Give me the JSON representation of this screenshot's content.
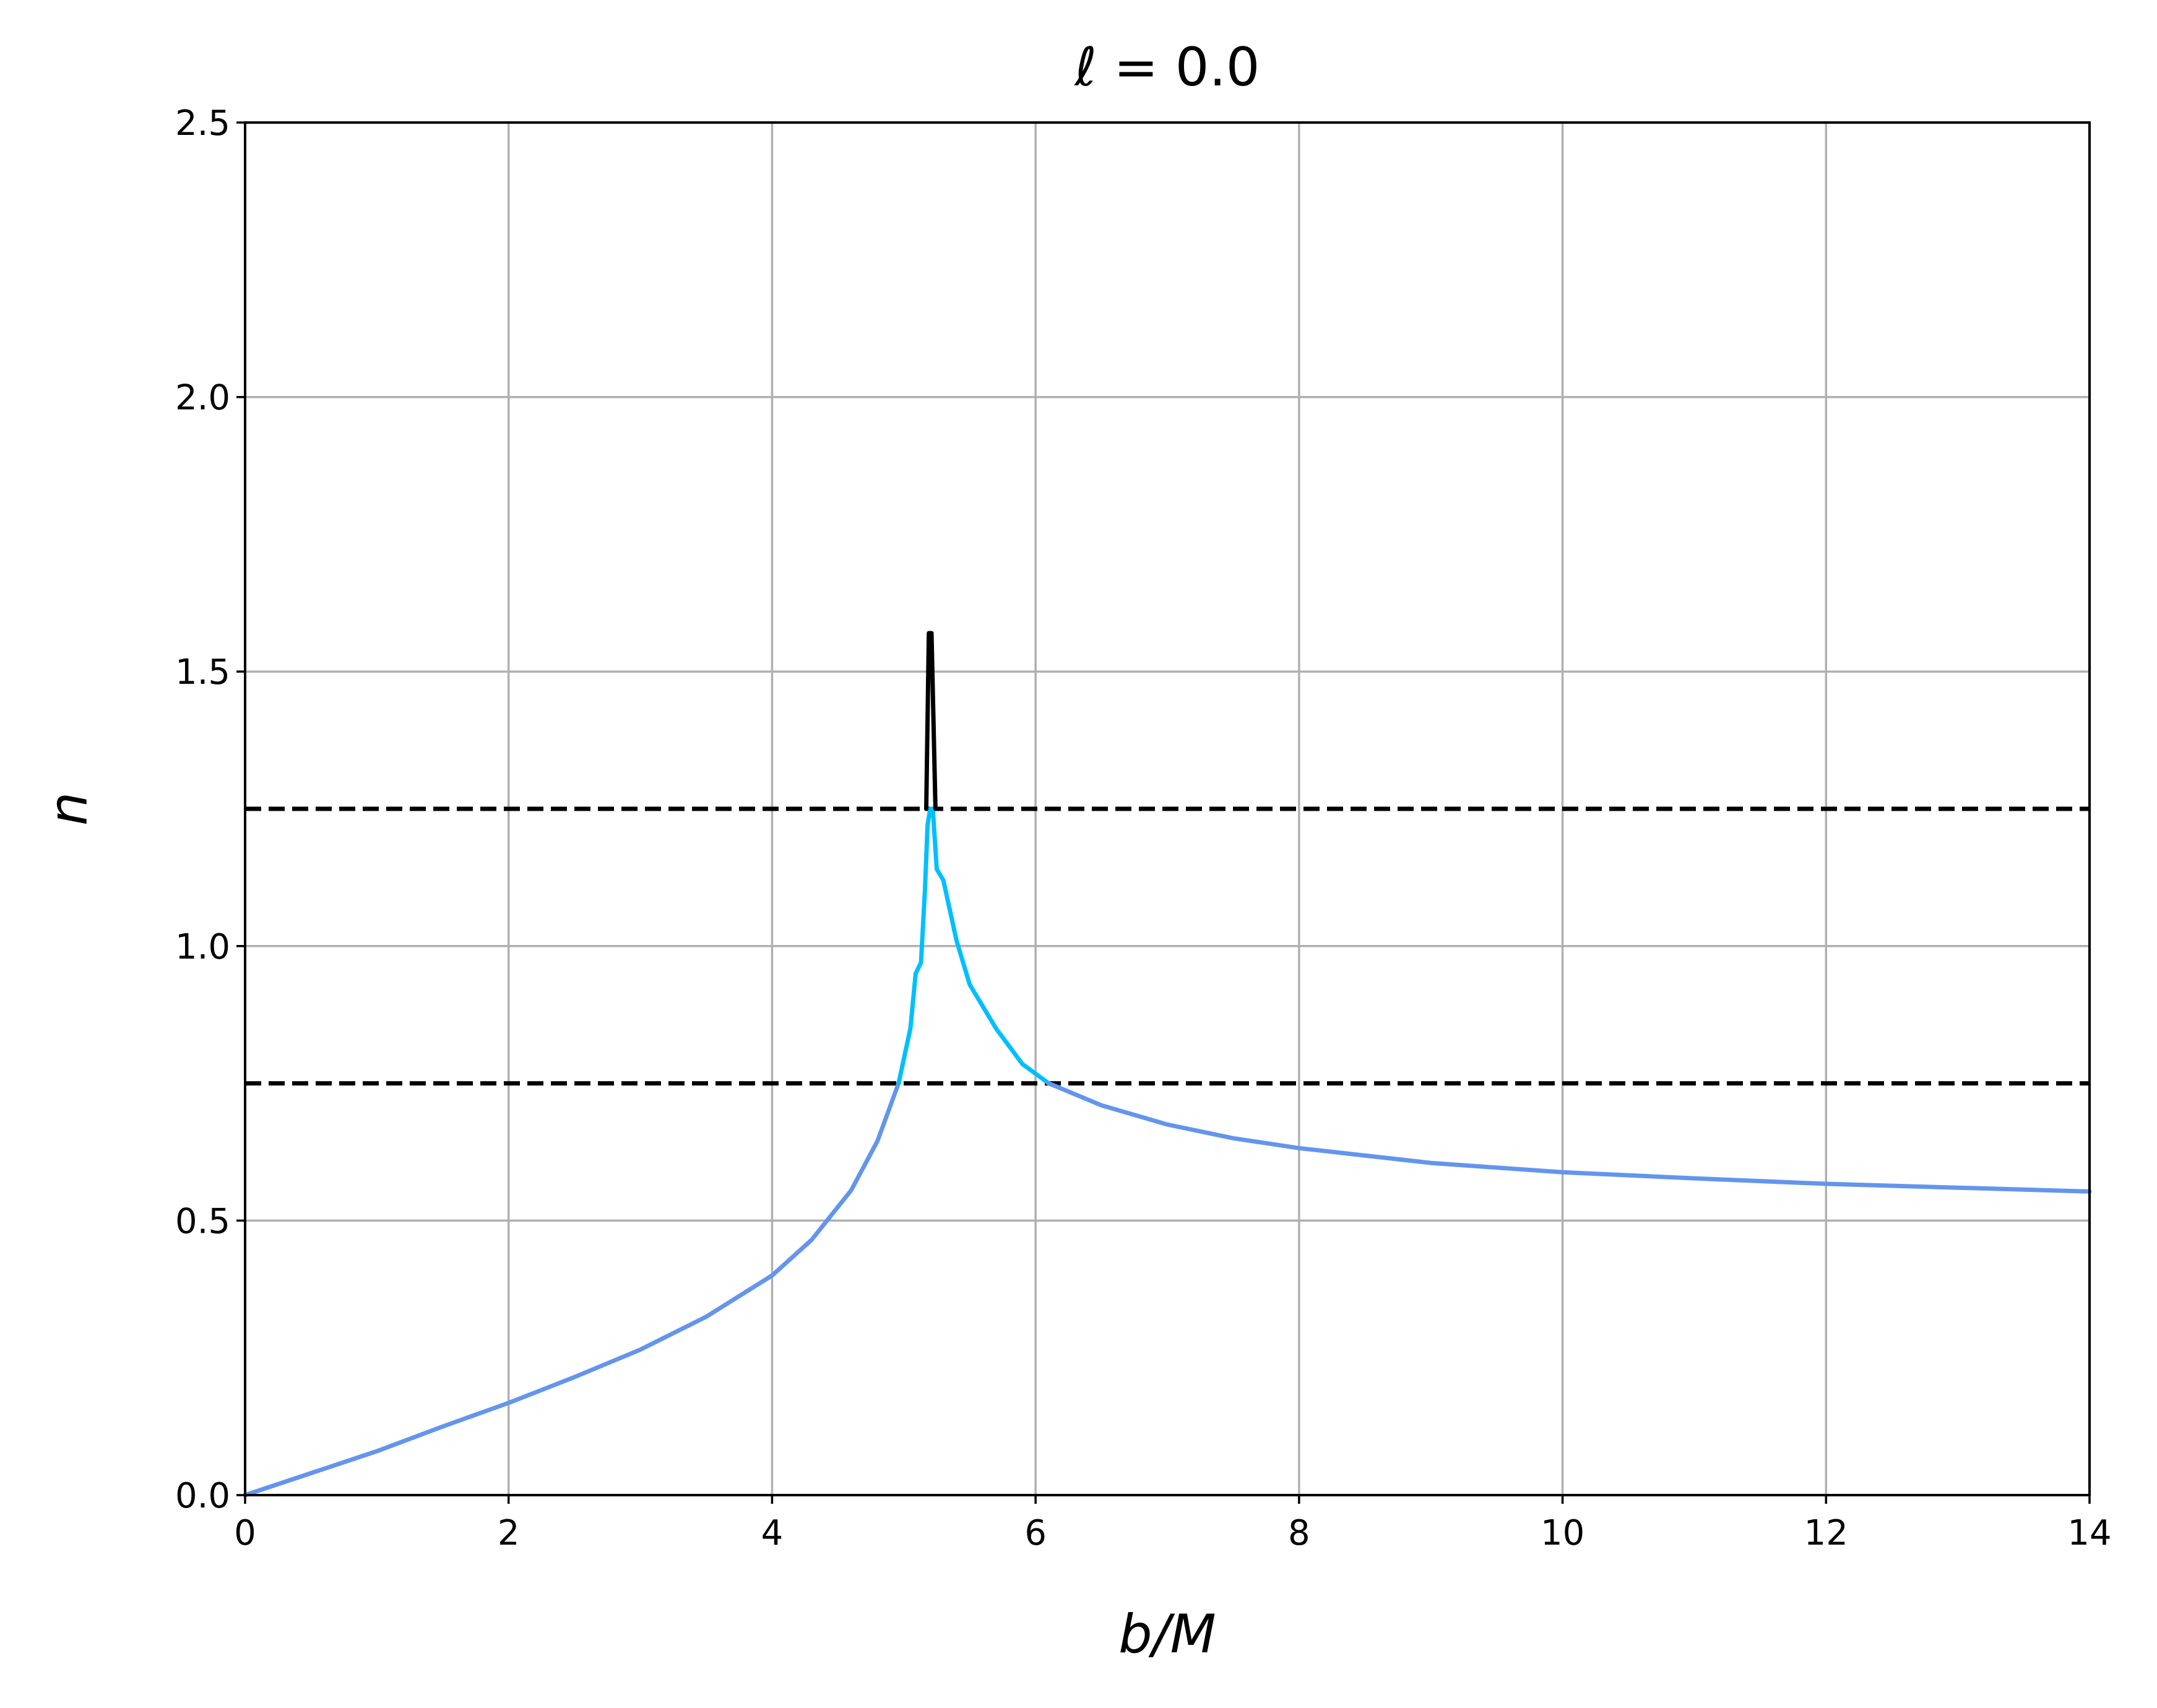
{
  "chart_data": {
    "type": "line",
    "title": "ℓ = 0.0",
    "xlabel": "b/M",
    "ylabel": "n",
    "xlim": [
      0,
      14
    ],
    "ylim": [
      0,
      2.5
    ],
    "grid": true,
    "x_ticks": [
      "0",
      "2",
      "4",
      "6",
      "8",
      "10",
      "12",
      "14"
    ],
    "y_ticks": [
      "0.0",
      "0.5",
      "1.0",
      "1.5",
      "2.0",
      "2.5"
    ],
    "reference_lines": [
      {
        "y": 0.75,
        "style": "dashed",
        "color": "#000000"
      },
      {
        "y": 1.25,
        "style": "dashed",
        "color": "#000000"
      }
    ],
    "series": [
      {
        "color": "#6495ED",
        "points": [
          [
            0.0,
            0.0
          ],
          [
            0.5,
            0.04
          ],
          [
            1.0,
            0.08
          ],
          [
            1.5,
            0.125
          ],
          [
            2.0,
            0.168
          ],
          [
            2.5,
            0.215
          ],
          [
            3.0,
            0.265
          ],
          [
            3.5,
            0.325
          ],
          [
            4.0,
            0.4
          ],
          [
            4.3,
            0.465
          ],
          [
            4.6,
            0.555
          ],
          [
            4.8,
            0.645
          ],
          [
            4.96,
            0.75
          ]
        ]
      },
      {
        "color": "#00BFFF",
        "points": [
          [
            4.96,
            0.75
          ],
          [
            5.05,
            0.85
          ],
          [
            5.09,
            0.95
          ],
          [
            5.13,
            0.97
          ],
          [
            5.16,
            1.1
          ],
          [
            5.18,
            1.22
          ],
          [
            5.2,
            1.25
          ],
          [
            5.22,
            1.25
          ],
          [
            5.25,
            1.14
          ],
          [
            5.3,
            1.12
          ],
          [
            5.4,
            1.01
          ],
          [
            5.5,
            0.93
          ],
          [
            5.7,
            0.85
          ],
          [
            5.9,
            0.785
          ],
          [
            6.1,
            0.75
          ]
        ]
      },
      {
        "color": "#6495ED",
        "points": [
          [
            6.1,
            0.75
          ],
          [
            6.5,
            0.71
          ],
          [
            7.0,
            0.675
          ],
          [
            7.5,
            0.65
          ],
          [
            8.0,
            0.632
          ],
          [
            9.0,
            0.605
          ],
          [
            10.0,
            0.588
          ],
          [
            11.0,
            0.577
          ],
          [
            12.0,
            0.567
          ],
          [
            13.0,
            0.56
          ],
          [
            14.0,
            0.553
          ]
        ]
      },
      {
        "color": "#000000",
        "points": [
          [
            5.17,
            1.25
          ],
          [
            5.19,
            1.57
          ],
          [
            5.21,
            1.57
          ],
          [
            5.24,
            1.25
          ]
        ]
      }
    ]
  }
}
